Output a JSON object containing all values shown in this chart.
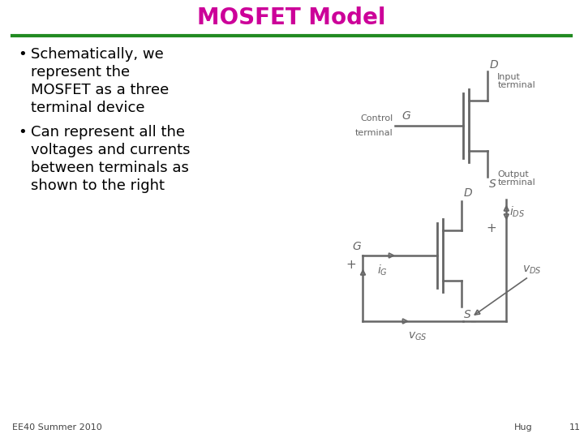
{
  "title": "MOSFET Model",
  "title_color": "#CC0099",
  "title_fontsize": 20,
  "separator_color": "#228B22",
  "bg_color": "#FFFFFF",
  "bullet1_lines": [
    "Schematically, we",
    "represent the",
    "MOSFET as a three",
    "terminal device"
  ],
  "bullet2_lines": [
    "Can represent all the",
    "voltages and currents",
    "between terminals as",
    "shown to the right"
  ],
  "footer_left": "EE40 Summer 2010",
  "footer_right": "Hug",
  "footer_page": "11",
  "text_color": "#000000",
  "diagram_color": "#666666"
}
